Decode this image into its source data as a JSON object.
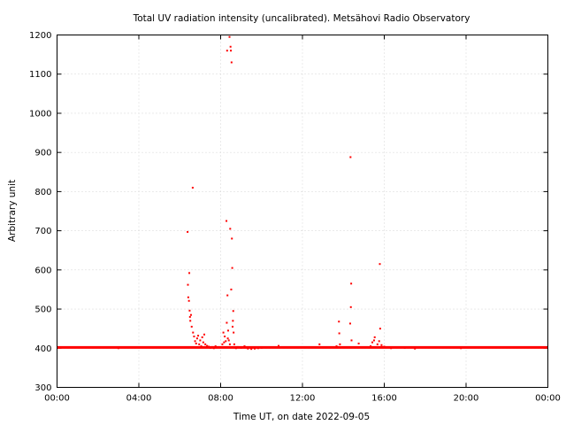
{
  "chart_data": {
    "type": "scatter",
    "title": "Total UV radiation intensity (uncalibrated). Metsähovi Radio Observatory",
    "xlabel": "Time UT, on date 2022-09-05",
    "ylabel": "Arbitrary unit",
    "xlim": [
      "00:00",
      "24:00"
    ],
    "ylim": [
      300,
      1200
    ],
    "x_ticks": [
      "00:00",
      "04:00",
      "08:00",
      "12:00",
      "16:00",
      "20:00",
      "00:00"
    ],
    "y_ticks": [
      300,
      400,
      500,
      600,
      700,
      800,
      900,
      1000,
      1100,
      1200
    ],
    "grid": true,
    "legend": "none",
    "color": "#ff0000",
    "baseline": {
      "value": 402,
      "from": "00:00",
      "to": "24:00"
    },
    "points": [
      {
        "x": "06:23",
        "y": 697
      },
      {
        "x": "06:24",
        "y": 562
      },
      {
        "x": "06:25",
        "y": 530
      },
      {
        "x": "06:27",
        "y": 521
      },
      {
        "x": "06:28",
        "y": 592
      },
      {
        "x": "06:29",
        "y": 496
      },
      {
        "x": "06:30",
        "y": 480
      },
      {
        "x": "06:31",
        "y": 470
      },
      {
        "x": "06:33",
        "y": 485
      },
      {
        "x": "06:35",
        "y": 455
      },
      {
        "x": "06:38",
        "y": 810
      },
      {
        "x": "06:39",
        "y": 440
      },
      {
        "x": "06:42",
        "y": 430
      },
      {
        "x": "06:45",
        "y": 418
      },
      {
        "x": "06:48",
        "y": 412
      },
      {
        "x": "06:51",
        "y": 425
      },
      {
        "x": "06:54",
        "y": 432
      },
      {
        "x": "06:57",
        "y": 410
      },
      {
        "x": "07:00",
        "y": 420
      },
      {
        "x": "07:03",
        "y": 405
      },
      {
        "x": "07:06",
        "y": 428
      },
      {
        "x": "07:09",
        "y": 415
      },
      {
        "x": "07:12",
        "y": 435
      },
      {
        "x": "07:15",
        "y": 410
      },
      {
        "x": "07:20",
        "y": 406
      },
      {
        "x": "07:25",
        "y": 404
      },
      {
        "x": "07:30",
        "y": 401
      },
      {
        "x": "07:35",
        "y": 403
      },
      {
        "x": "07:40",
        "y": 400
      },
      {
        "x": "07:45",
        "y": 405
      },
      {
        "x": "08:05",
        "y": 410
      },
      {
        "x": "08:08",
        "y": 440
      },
      {
        "x": "08:10",
        "y": 415
      },
      {
        "x": "08:12",
        "y": 430
      },
      {
        "x": "08:15",
        "y": 418
      },
      {
        "x": "08:17",
        "y": 725
      },
      {
        "x": "08:18",
        "y": 465
      },
      {
        "x": "08:19",
        "y": 1160
      },
      {
        "x": "08:20",
        "y": 535
      },
      {
        "x": "08:21",
        "y": 425
      },
      {
        "x": "08:22",
        "y": 445
      },
      {
        "x": "08:24",
        "y": 420
      },
      {
        "x": "08:26",
        "y": 1195
      },
      {
        "x": "08:27",
        "y": 410
      },
      {
        "x": "08:28",
        "y": 705
      },
      {
        "x": "08:29",
        "y": 1170
      },
      {
        "x": "08:30",
        "y": 1160
      },
      {
        "x": "08:31",
        "y": 550
      },
      {
        "x": "08:32",
        "y": 1130
      },
      {
        "x": "08:33",
        "y": 680
      },
      {
        "x": "08:34",
        "y": 605
      },
      {
        "x": "08:35",
        "y": 455
      },
      {
        "x": "08:36",
        "y": 470
      },
      {
        "x": "08:37",
        "y": 495
      },
      {
        "x": "08:38",
        "y": 440
      },
      {
        "x": "08:40",
        "y": 410
      },
      {
        "x": "08:45",
        "y": 400
      },
      {
        "x": "08:50",
        "y": 403
      },
      {
        "x": "09:00",
        "y": 401
      },
      {
        "x": "09:10",
        "y": 405
      },
      {
        "x": "09:20",
        "y": 399
      },
      {
        "x": "09:30",
        "y": 398
      },
      {
        "x": "09:40",
        "y": 399
      },
      {
        "x": "09:50",
        "y": 400
      },
      {
        "x": "10:00",
        "y": 401
      },
      {
        "x": "10:50",
        "y": 406
      },
      {
        "x": "12:50",
        "y": 410
      },
      {
        "x": "13:40",
        "y": 405
      },
      {
        "x": "13:47",
        "y": 468
      },
      {
        "x": "13:48",
        "y": 438
      },
      {
        "x": "13:50",
        "y": 410
      },
      {
        "x": "14:20",
        "y": 463
      },
      {
        "x": "14:21",
        "y": 888
      },
      {
        "x": "14:22",
        "y": 505
      },
      {
        "x": "14:23",
        "y": 565
      },
      {
        "x": "14:24",
        "y": 420
      },
      {
        "x": "14:45",
        "y": 412
      },
      {
        "x": "15:20",
        "y": 405
      },
      {
        "x": "15:25",
        "y": 415
      },
      {
        "x": "15:30",
        "y": 420
      },
      {
        "x": "15:32",
        "y": 428
      },
      {
        "x": "15:40",
        "y": 410
      },
      {
        "x": "15:45",
        "y": 418
      },
      {
        "x": "15:47",
        "y": 615
      },
      {
        "x": "15:48",
        "y": 450
      },
      {
        "x": "15:52",
        "y": 408
      },
      {
        "x": "16:00",
        "y": 404
      },
      {
        "x": "16:20",
        "y": 400
      },
      {
        "x": "17:00",
        "y": 401
      },
      {
        "x": "17:30",
        "y": 399
      },
      {
        "x": "19:45",
        "y": 400
      },
      {
        "x": "03:00",
        "y": 400
      }
    ]
  }
}
